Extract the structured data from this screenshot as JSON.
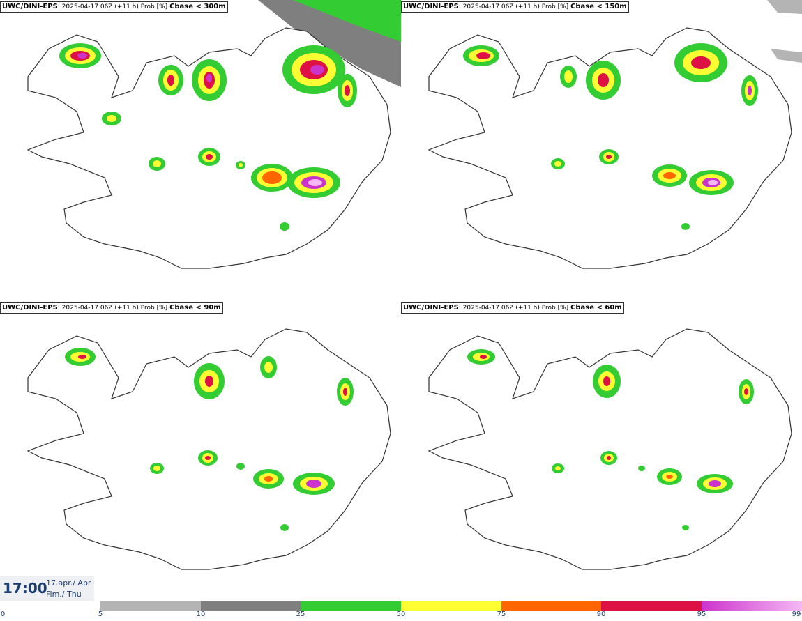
{
  "panels": [
    {
      "model": "UWC/DINI-EPS",
      "run": "2025-04-17 06Z (+11 h) Prob [%]",
      "threshold": "Cbase < 300m"
    },
    {
      "model": "UWC/DINI-EPS",
      "run": "2025-04-17 06Z (+11 h) Prob [%]",
      "threshold": "Cbase < 150m"
    },
    {
      "model": "UWC/DINI-EPS",
      "run": "2025-04-17 06Z (+11 h) Prob [%]",
      "threshold": "Cbase < 90m"
    },
    {
      "model": "UWC/DINI-EPS",
      "run": "2025-04-17 06Z (+11 h) Prob [%]",
      "threshold": "Cbase < 60m"
    }
  ],
  "valid_time": {
    "time": "17:00",
    "date_line": "17.apr./ Apr",
    "day_line": "Fim./ Thu"
  },
  "legend": {
    "ticks": [
      "0",
      "5",
      "10",
      "25",
      "50",
      "75",
      "90",
      "95",
      "99"
    ],
    "colors": [
      "#ffffff",
      "#b4b4b4",
      "#7f7f7f",
      "#33cc33",
      "#ffff33",
      "#ff6600",
      "#dd1144",
      "#cc33cc",
      "#f4b8f4"
    ]
  },
  "map": {
    "land_fill": "#ffffff",
    "coast_color": "#333333",
    "region": "Iceland"
  }
}
